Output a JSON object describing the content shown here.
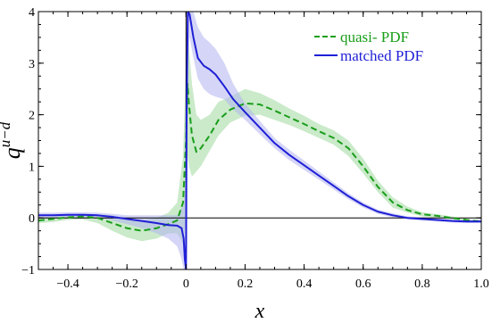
{
  "chart_data": {
    "type": "line",
    "xlabel": "x",
    "ylabel_base": "q",
    "ylabel_sup": "u−d",
    "xlim": [
      -0.5,
      1.0
    ],
    "ylim": [
      -1,
      4
    ],
    "xticks": [
      -0.4,
      -0.2,
      0,
      0.2,
      0.4,
      0.6,
      0.8,
      1.0
    ],
    "xtick_labels": [
      "−0.4",
      "−0.2",
      "0",
      "0.2",
      "0.4",
      "0.6",
      "0.8",
      "1.0"
    ],
    "yticks": [
      -1,
      0,
      1,
      2,
      3,
      4
    ],
    "ytick_labels": [
      "−1",
      "0",
      "1",
      "2",
      "3",
      "4"
    ],
    "grid": false,
    "legend_position": "top-right",
    "series": [
      {
        "name": "quasi- PDF",
        "color": "#1a9e1a",
        "band_color": "#9ed99e",
        "style": "dashed",
        "x": [
          -0.5,
          -0.45,
          -0.4,
          -0.35,
          -0.3,
          -0.25,
          -0.2,
          -0.15,
          -0.1,
          -0.06,
          -0.03,
          -0.01,
          0.0,
          0.005,
          0.01,
          0.02,
          0.035,
          0.05,
          0.08,
          0.11,
          0.15,
          0.2,
          0.25,
          0.3,
          0.35,
          0.4,
          0.45,
          0.5,
          0.55,
          0.6,
          0.65,
          0.7,
          0.75,
          0.8,
          0.85,
          0.9,
          0.95,
          1.0
        ],
        "y": [
          -0.05,
          -0.02,
          0.01,
          0.03,
          0.0,
          -0.1,
          -0.2,
          -0.25,
          -0.2,
          -0.12,
          -0.05,
          0.3,
          1.5,
          2.6,
          2.2,
          1.6,
          1.28,
          1.35,
          1.6,
          1.9,
          2.1,
          2.22,
          2.2,
          2.08,
          1.95,
          1.82,
          1.68,
          1.55,
          1.35,
          1.0,
          0.6,
          0.3,
          0.15,
          0.07,
          0.04,
          0.0,
          -0.04,
          -0.07
        ],
        "lower": [
          -0.1,
          -0.08,
          -0.04,
          -0.03,
          -0.1,
          -0.25,
          -0.38,
          -0.45,
          -0.4,
          -0.3,
          -0.3,
          -0.5,
          0.0,
          1.2,
          1.0,
          0.8,
          0.9,
          1.0,
          1.3,
          1.6,
          1.85,
          1.98,
          2.0,
          1.9,
          1.8,
          1.68,
          1.55,
          1.42,
          1.2,
          0.86,
          0.5,
          0.2,
          0.1,
          0.03,
          0.0,
          -0.03,
          -0.06,
          -0.09
        ],
        "upper": [
          0.0,
          0.02,
          0.06,
          0.08,
          0.07,
          0.05,
          -0.02,
          -0.05,
          0.0,
          0.1,
          0.3,
          1.2,
          3.0,
          3.6,
          3.3,
          2.6,
          2.0,
          1.9,
          2.0,
          2.25,
          2.35,
          2.5,
          2.42,
          2.28,
          2.12,
          1.98,
          1.82,
          1.7,
          1.5,
          1.15,
          0.72,
          0.4,
          0.22,
          0.11,
          0.07,
          0.03,
          -0.02,
          -0.05
        ]
      },
      {
        "name": "matched PDF",
        "color": "#1f1fd6",
        "band_color": "#b3b3f0",
        "style": "solid",
        "x": [
          -0.5,
          -0.45,
          -0.4,
          -0.35,
          -0.3,
          -0.25,
          -0.2,
          -0.15,
          -0.1,
          -0.06,
          -0.03,
          -0.015,
          -0.008,
          -0.004,
          0.0,
          0.002,
          0.006,
          0.012,
          0.025,
          0.04,
          0.06,
          0.08,
          0.1,
          0.13,
          0.16,
          0.2,
          0.25,
          0.3,
          0.35,
          0.4,
          0.45,
          0.5,
          0.55,
          0.6,
          0.65,
          0.7,
          0.75,
          0.8,
          0.85,
          0.9,
          0.95,
          1.0
        ],
        "y": [
          0.05,
          0.05,
          0.06,
          0.06,
          0.05,
          0.02,
          -0.02,
          -0.06,
          -0.1,
          -0.14,
          -0.15,
          -0.2,
          -0.4,
          -0.8,
          -1.0,
          2.0,
          4.0,
          3.95,
          3.5,
          3.1,
          2.95,
          2.88,
          2.78,
          2.55,
          2.3,
          2.05,
          1.75,
          1.45,
          1.22,
          1.02,
          0.82,
          0.62,
          0.42,
          0.25,
          0.12,
          0.05,
          0.0,
          -0.02,
          -0.04,
          -0.06,
          -0.07,
          -0.07
        ],
        "lower": [
          0.0,
          0.0,
          0.01,
          0.01,
          0.0,
          -0.05,
          -0.12,
          -0.2,
          -0.3,
          -0.4,
          -0.55,
          -0.8,
          -1.0,
          -1.0,
          -1.0,
          1.0,
          3.0,
          3.5,
          3.1,
          2.7,
          2.5,
          2.4,
          2.35,
          2.3,
          2.1,
          1.9,
          1.62,
          1.35,
          1.12,
          0.93,
          0.74,
          0.55,
          0.36,
          0.2,
          0.08,
          0.01,
          -0.03,
          -0.05,
          -0.07,
          -0.09,
          -0.1,
          -0.1
        ],
        "upper": [
          0.1,
          0.1,
          0.11,
          0.11,
          0.1,
          0.08,
          0.05,
          0.05,
          0.05,
          0.05,
          0.05,
          0.2,
          0.3,
          0.5,
          1.0,
          3.5,
          4.0,
          4.0,
          4.0,
          3.7,
          3.5,
          3.4,
          3.28,
          3.0,
          2.6,
          2.22,
          1.88,
          1.55,
          1.32,
          1.11,
          0.9,
          0.69,
          0.48,
          0.3,
          0.16,
          0.09,
          0.03,
          0.01,
          -0.01,
          -0.03,
          -0.04,
          -0.04
        ]
      }
    ]
  }
}
